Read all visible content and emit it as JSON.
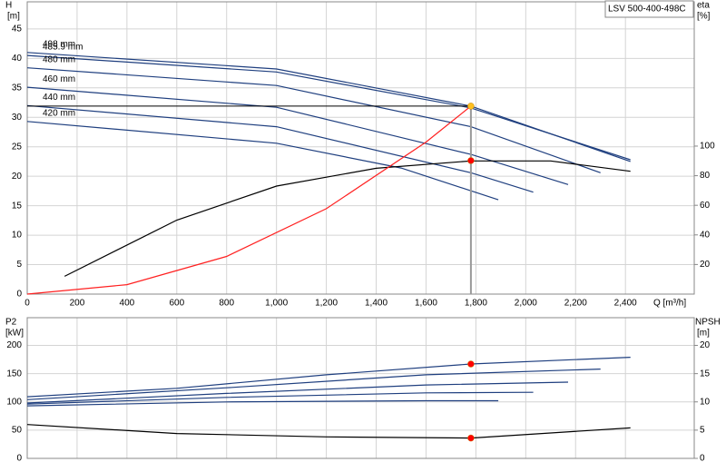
{
  "chart_data": [
    {
      "type": "line",
      "title": "LSV 500-400-498C",
      "xlabel": "Q [m³/h]",
      "ylabel": "H",
      "yunit": "[m]",
      "y2label": "eta",
      "y2unit": "[%]",
      "xlim": [
        0,
        2676
      ],
      "ylim": [
        0,
        49.6
      ],
      "y2lim": [
        0,
        197.5
      ],
      "grid": true,
      "show_xtick_labels": true,
      "xticks": [
        0,
        200,
        400,
        600,
        800,
        {
          "value": 1000,
          "label": "1,000"
        },
        {
          "value": 1200,
          "label": "1,200"
        },
        {
          "value": 1400,
          "label": "1,400"
        },
        {
          "value": 1600,
          "label": "1,600"
        },
        {
          "value": 1800,
          "label": "1,800"
        },
        {
          "value": 2000,
          "label": "2,000"
        },
        {
          "value": 2200,
          "label": "2,200"
        },
        {
          "value": 2400,
          "label": "2,400"
        }
      ],
      "yticks": [
        0,
        5,
        10,
        15,
        20,
        25,
        30,
        35,
        40,
        45
      ],
      "y2ticks": [
        20,
        40,
        60,
        80,
        100
      ],
      "series": [
        {
          "name": "498 mm",
          "color": "#1f3f7f",
          "x": [
            0,
            1000,
            1780,
            2420
          ],
          "values": [
            41.0,
            38.2,
            31.9,
            22.5
          ]
        },
        {
          "name": "485.9 mm",
          "color": "#1f3f7f",
          "x": [
            0,
            1000,
            1780,
            2420
          ],
          "values": [
            40.5,
            37.7,
            31.6,
            22.8
          ]
        },
        {
          "name": "480 mm",
          "color": "#1f3f7f",
          "x": [
            0,
            1000,
            1780,
            2300
          ],
          "values": [
            38.4,
            35.4,
            28.4,
            20.6
          ]
        },
        {
          "name": "460 mm",
          "color": "#1f3f7f",
          "x": [
            0,
            1000,
            1780,
            2170
          ],
          "values": [
            35.1,
            31.7,
            23.7,
            18.6
          ]
        },
        {
          "name": "440 mm",
          "color": "#1f3f7f",
          "x": [
            0,
            1000,
            1780,
            2030
          ],
          "values": [
            32.0,
            28.4,
            20.6,
            17.3
          ]
        },
        {
          "name": "420 mm",
          "color": "#1f3f7f",
          "x": [
            0,
            1000,
            1500,
            1890
          ],
          "values": [
            29.3,
            25.6,
            21.4,
            16.0
          ]
        },
        {
          "color": "#000000",
          "axis": "y2",
          "x": [
            150,
            600,
            1000,
            1400,
            1780,
            2100,
            2420
          ],
          "values": [
            12,
            50,
            73,
            85,
            90,
            90,
            83
          ]
        },
        {
          "color": "#ff2020",
          "x": [
            0,
            400,
            800,
            1200,
            1600,
            1780
          ],
          "values": [
            0,
            1.6,
            6.4,
            14.5,
            25.8,
            31.9
          ]
        },
        {
          "color": "#ffc020",
          "marker": true,
          "guides": true,
          "x": [
            1780
          ],
          "values": [
            31.9
          ]
        },
        {
          "color": "#ff0000",
          "marker": true,
          "axis": "y2",
          "x": [
            1780
          ],
          "values": [
            90.2
          ]
        }
      ]
    },
    {
      "type": "line",
      "ylabel": "P2",
      "yunit": "[kW]",
      "y2label": "NPSH",
      "y2unit": "[m]",
      "xlim": [
        0,
        2676
      ],
      "ylim": [
        0,
        249
      ],
      "y2lim": [
        0,
        24.9
      ],
      "grid": true,
      "show_xtick_labels": false,
      "xticks": [
        0,
        200,
        400,
        600,
        800,
        1000,
        1200,
        1400,
        1600,
        1800,
        2000,
        2200,
        2400
      ],
      "yticks": [
        0,
        50,
        100,
        150,
        200
      ],
      "y2ticks": [
        0,
        5,
        10,
        15,
        20
      ],
      "series": [
        {
          "color": "#1f3f7f",
          "x": [
            0,
            600,
            1200,
            1780,
            2420
          ],
          "values": [
            109,
            124,
            148,
            167,
            179
          ]
        },
        {
          "color": "#1f3f7f",
          "x": [
            0,
            800,
            1600,
            2300
          ],
          "values": [
            104,
            125,
            148,
            158
          ]
        },
        {
          "color": "#1f3f7f",
          "x": [
            0,
            800,
            1600,
            2170
          ],
          "values": [
            98,
            115,
            130,
            135
          ]
        },
        {
          "color": "#1f3f7f",
          "x": [
            0,
            800,
            1600,
            2030
          ],
          "values": [
            96,
            108,
            116,
            117
          ]
        },
        {
          "color": "#1f3f7f",
          "x": [
            0,
            800,
            1600,
            1890
          ],
          "values": [
            93,
            100,
            102,
            102
          ]
        },
        {
          "color": "#000000",
          "axis": "y2",
          "x": [
            0,
            600,
            1200,
            1780,
            2420
          ],
          "values": [
            6,
            4.4,
            3.8,
            3.6,
            5.4
          ]
        },
        {
          "color": "#ff0000",
          "marker": true,
          "x": [
            1780
          ],
          "values": [
            167
          ]
        },
        {
          "color": "#ff0000",
          "marker": true,
          "axis": "y2",
          "x": [
            1780
          ],
          "values": [
            3.6
          ]
        }
      ]
    }
  ]
}
